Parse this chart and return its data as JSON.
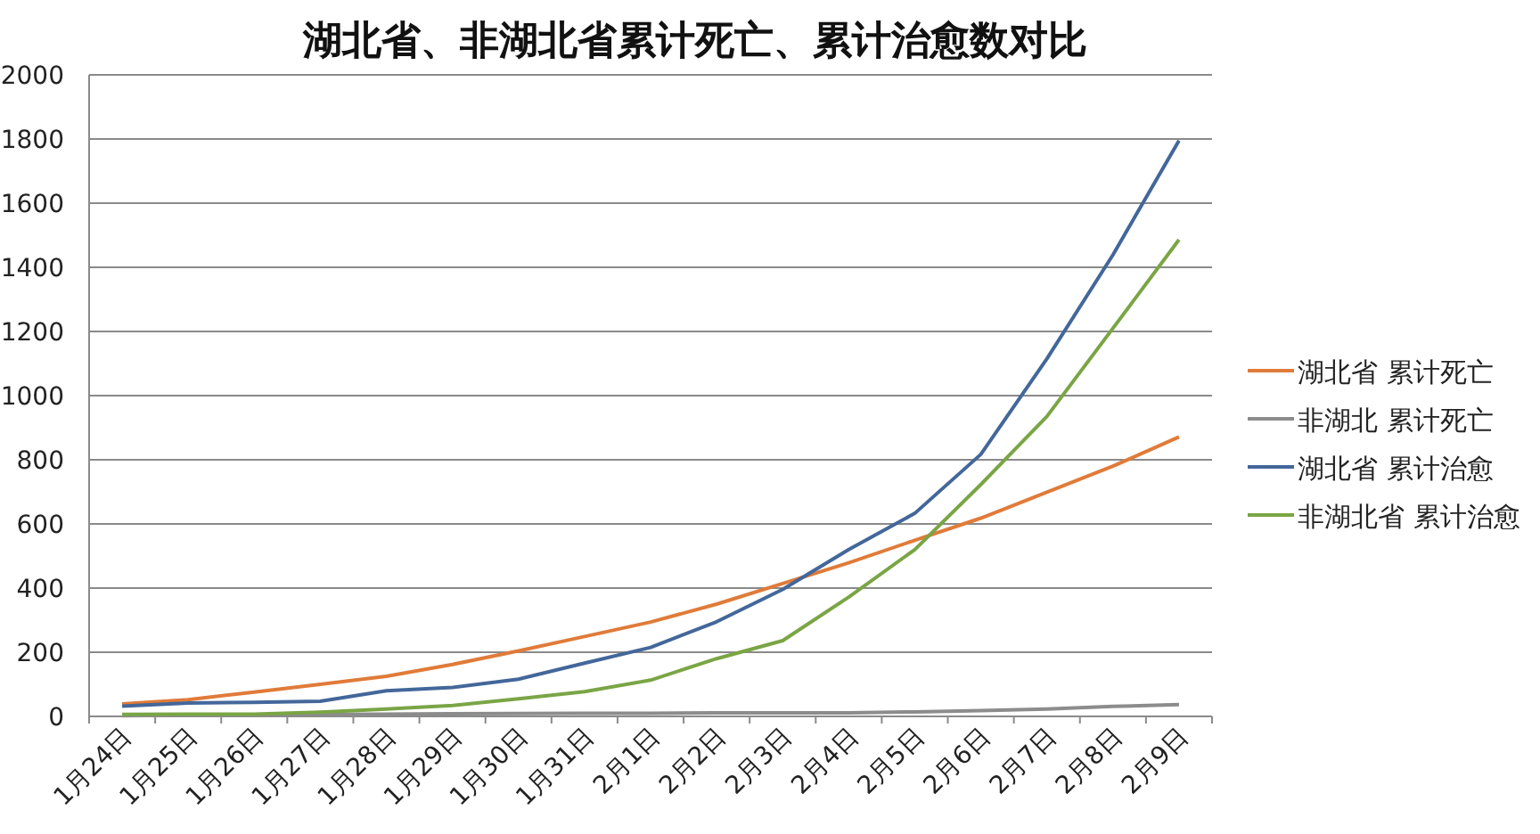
{
  "chart_data": {
    "type": "line",
    "title": "湖北省、非湖北省累计死亡、累计治愈数对比",
    "categories": [
      "1月24日",
      "1月25日",
      "1月26日",
      "1月27日",
      "1月28日",
      "1月29日",
      "1月30日",
      "1月31日",
      "2月1日",
      "2月2日",
      "2月3日",
      "2月4日",
      "2月5日",
      "2月6日",
      "2月7日",
      "2月8日",
      "2月9日"
    ],
    "series": [
      {
        "name": "湖北省 累计死亡",
        "color": "#e07b39",
        "values": [
          39,
          52,
          76,
          100,
          125,
          162,
          204,
          249,
          294,
          350,
          414,
          479,
          549,
          618,
          699,
          780,
          871
        ]
      },
      {
        "name": "非湖北 累计死亡",
        "color": "#8c8c8c",
        "values": [
          2,
          4,
          4,
          6,
          7,
          8,
          9,
          10,
          10,
          11,
          11,
          11,
          14,
          18,
          23,
          31,
          37
        ]
      },
      {
        "name": "湖北省 累计治愈",
        "color": "#43679a",
        "values": [
          32,
          42,
          44,
          47,
          80,
          90,
          116,
          166,
          215,
          295,
          396,
          520,
          633,
          817,
          1115,
          1439,
          1795
        ]
      },
      {
        "name": "非湖北省 累计治愈",
        "color": "#7aa545",
        "values": [
          6,
          7,
          7,
          13,
          23,
          34,
          55,
          77,
          113,
          180,
          236,
          372,
          520,
          723,
          935,
          1210,
          1486
        ]
      }
    ],
    "ylim": [
      0,
      2000
    ],
    "yticks": [
      0,
      200,
      400,
      600,
      800,
      1000,
      1200,
      1400,
      1600,
      1800,
      2000
    ],
    "grid": "y",
    "legend": "right",
    "marker": "none",
    "line_style": "solid"
  }
}
